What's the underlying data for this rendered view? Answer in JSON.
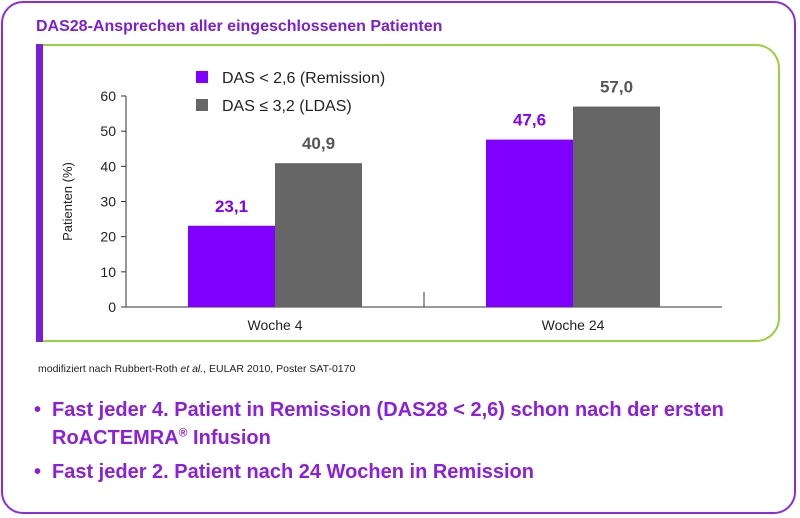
{
  "header": {
    "title": "DAS28-Ansprechen aller eingeschlossenen Patienten"
  },
  "colors": {
    "frame": "#8a2be2",
    "chart_border": "#9ad13b",
    "title": "#7a1fd6",
    "bullets": "#8a1fe0",
    "series_remission": "#7f00ff",
    "series_ldas": "#666666"
  },
  "chart_data": {
    "type": "bar",
    "categories": [
      "Woche 4",
      "Woche 24"
    ],
    "series": [
      {
        "name": "DAS < 2,6 (Remission)",
        "values": [
          23.1,
          47.6
        ],
        "labels": [
          "23,1",
          "47,6"
        ],
        "color": "#7f00ff"
      },
      {
        "name": "DAS ≤ 3,2 (LDAS)",
        "values": [
          40.9,
          57.0
        ],
        "labels": [
          "40,9",
          "57,0"
        ],
        "color": "#666666"
      }
    ],
    "ylabel": "Patienten (%)",
    "xlabel": "",
    "ylim": [
      0,
      60
    ],
    "yticks": [
      0,
      10,
      20,
      30,
      40,
      50,
      60
    ],
    "grid": false,
    "legend_position": "top-left"
  },
  "source": {
    "prefix": "modifiziert nach Rubbert-Roth ",
    "italic": "et al.",
    "suffix": ", EULAR 2010, Poster SAT-0170"
  },
  "bullets": [
    {
      "marker": "•",
      "text_pre": "Fast jeder 4. Patient in Remission (DAS28 < 2,6) schon nach der ersten RoACTEMRA",
      "sup": "®",
      "text_post": " Infusion"
    },
    {
      "marker": "•",
      "text_pre": "Fast jeder 2. Patient nach 24 Wochen in Remission",
      "sup": "",
      "text_post": ""
    }
  ]
}
